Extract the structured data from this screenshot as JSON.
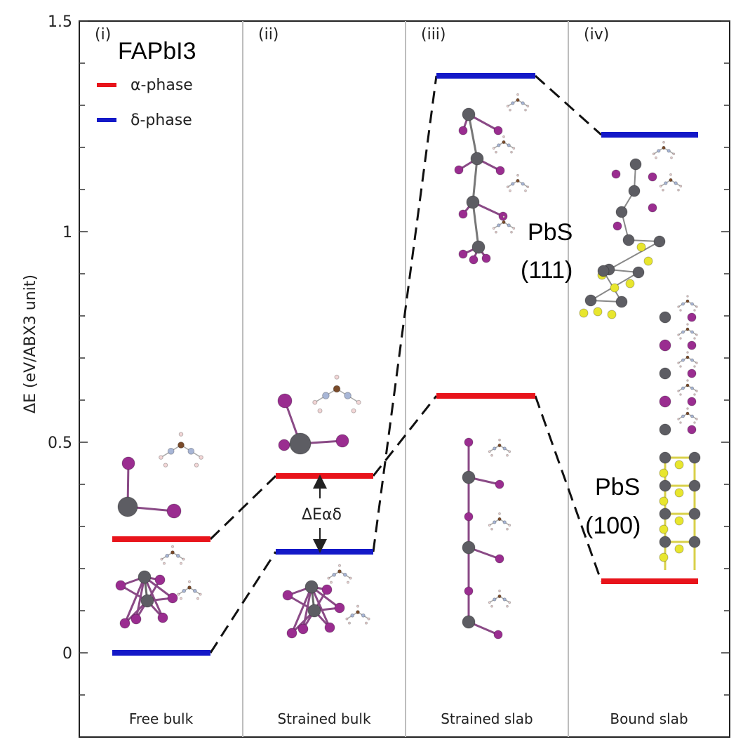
{
  "chart_data": {
    "type": "energy-level-diagram",
    "title": "FAPbI3",
    "ylabel": "ΔE (eV/ABX3 unit)",
    "ylim": [
      -0.2,
      1.5
    ],
    "yticks": [
      {
        "value": 0,
        "label": "0"
      },
      {
        "value": 0.5,
        "label": "0.5"
      },
      {
        "value": 1,
        "label": "1"
      },
      {
        "value": 1.5,
        "label": "1.5"
      }
    ],
    "panels": [
      {
        "id": "(i)",
        "label": "Free bulk"
      },
      {
        "id": "(ii)",
        "label": "Strained bulk"
      },
      {
        "id": "(iii)",
        "label": "Strained slab"
      },
      {
        "id": "(iv)",
        "label": "Bound slab"
      }
    ],
    "series": [
      {
        "name": "α-phase",
        "color": "#e8141b",
        "values": [
          0.27,
          0.42,
          0.61,
          0.17
        ]
      },
      {
        "name": "δ-phase",
        "color": "#1419c8",
        "values": [
          0.0,
          0.24,
          1.37,
          1.23
        ]
      }
    ],
    "annotations": {
      "delta_label": "ΔEαδ",
      "pbs_111_line1": "PbS",
      "pbs_111_line2": "(111)",
      "pbs_100_line1": "PbS",
      "pbs_100_line2": "(100)"
    }
  }
}
